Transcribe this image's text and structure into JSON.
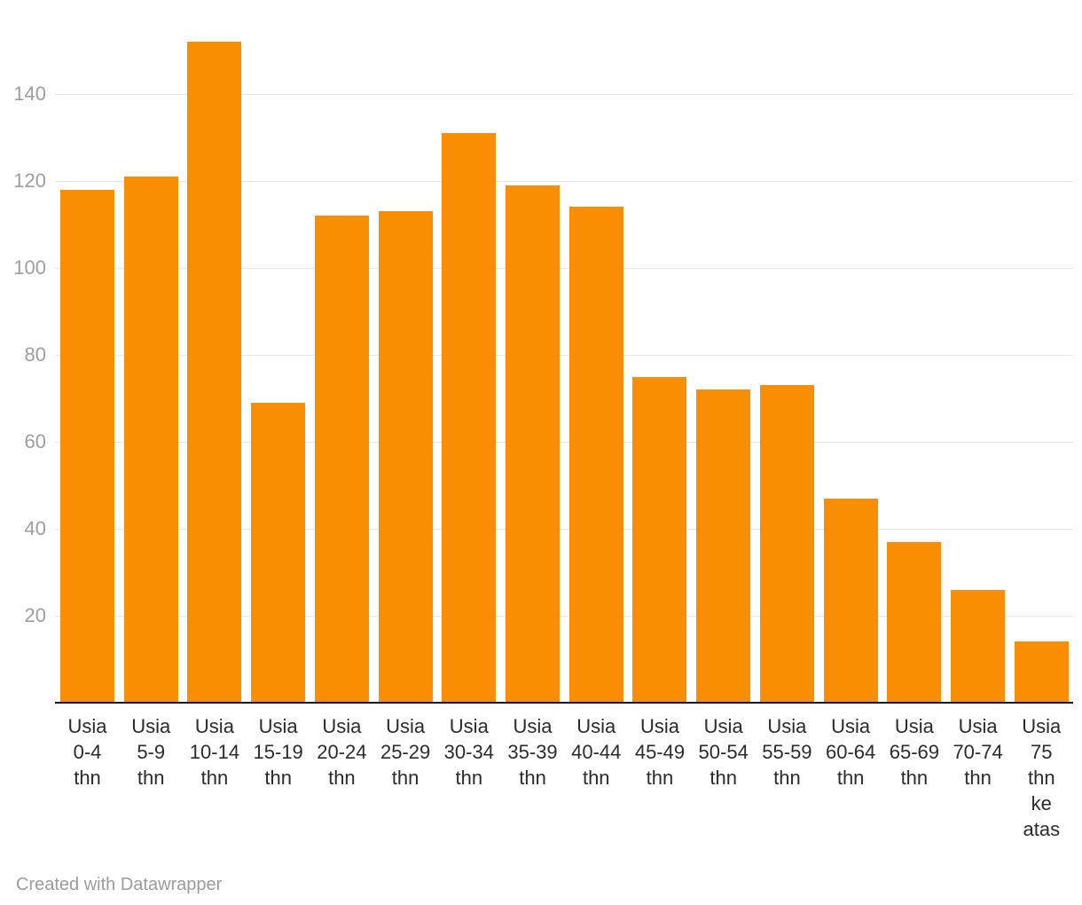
{
  "page": {
    "background": "#ffffff"
  },
  "colors": {
    "bar": "#F98E02",
    "gridline": "#E6E6E6",
    "axis_line": "#141414",
    "ytick_label": "#9D9D9D",
    "xtick_label": "#2B2B2B",
    "footer_text": "#9B9B9B"
  },
  "chart_data": {
    "type": "bar",
    "title": "",
    "xlabel": "",
    "ylabel": "",
    "categories": [
      "Usia 0-4 thn",
      "Usia 5-9 thn",
      "Usia 10-14 thn",
      "Usia 15-19 thn",
      "Usia 20-24 thn",
      "Usia 25-29 thn",
      "Usia 30-34 thn",
      "Usia 35-39 thn",
      "Usia 40-44 thn",
      "Usia 45-49 thn",
      "Usia 50-54 thn",
      "Usia 55-59 thn",
      "Usia 60-64 thn",
      "Usia 65-69 thn",
      "Usia 70-74 thn",
      "Usia 75 thn ke atas"
    ],
    "category_lines": [
      [
        "Usia",
        "0-4",
        "thn"
      ],
      [
        "Usia",
        "5-9",
        "thn"
      ],
      [
        "Usia",
        "10-14",
        "thn"
      ],
      [
        "Usia",
        "15-19",
        "thn"
      ],
      [
        "Usia",
        "20-24",
        "thn"
      ],
      [
        "Usia",
        "25-29",
        "thn"
      ],
      [
        "Usia",
        "30-34",
        "thn"
      ],
      [
        "Usia",
        "35-39",
        "thn"
      ],
      [
        "Usia",
        "40-44",
        "thn"
      ],
      [
        "Usia",
        "45-49",
        "thn"
      ],
      [
        "Usia",
        "50-54",
        "thn"
      ],
      [
        "Usia",
        "55-59",
        "thn"
      ],
      [
        "Usia",
        "60-64",
        "thn"
      ],
      [
        "Usia",
        "65-69",
        "thn"
      ],
      [
        "Usia",
        "70-74",
        "thn"
      ],
      [
        "Usia",
        "75",
        "thn",
        "ke",
        "atas"
      ]
    ],
    "values": [
      118,
      121,
      152,
      69,
      112,
      113,
      131,
      119,
      114,
      75,
      72,
      73,
      47,
      37,
      26,
      14
    ],
    "yticks": [
      20,
      40,
      60,
      80,
      100,
      120,
      140
    ],
    "ylim": [
      0,
      162
    ],
    "grid": true,
    "legend": false,
    "bar_color": "#F98E02"
  },
  "footer": {
    "text": "Created with Datawrapper"
  }
}
